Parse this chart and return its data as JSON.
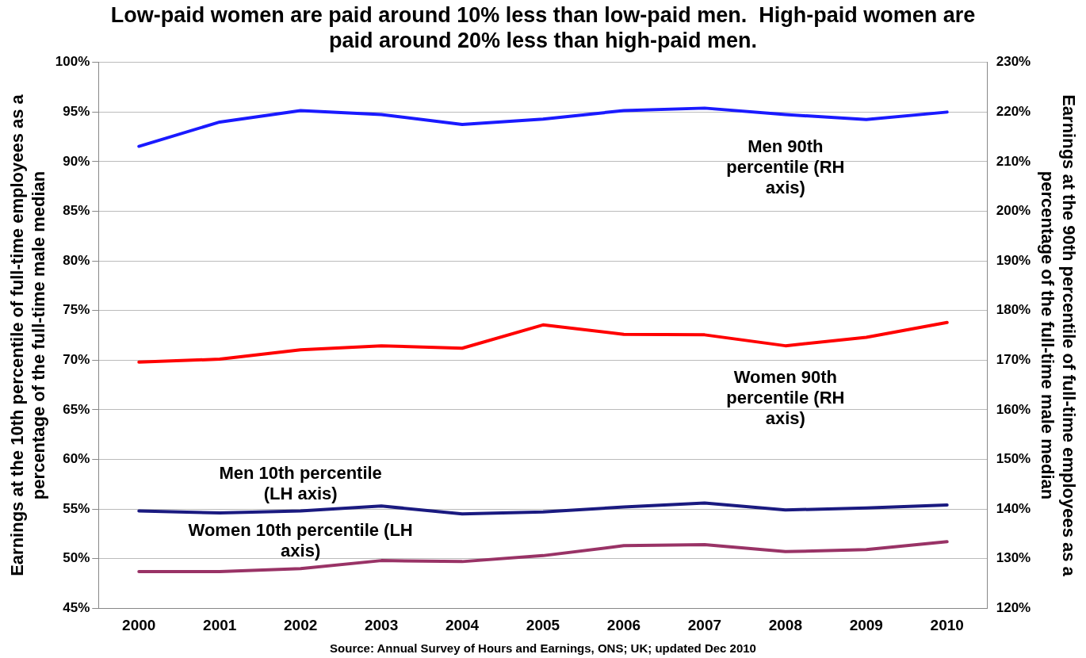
{
  "chart_data": {
    "type": "line",
    "title": "Low-paid women are paid around 10% less than low-paid men.  High-paid women are paid around 20% less than high-paid men.",
    "ylabel": "Earnings at the 10th percentile of full-time employees as a percentage of the full-time male median",
    "y2label": "Earnings at the 90th percentile of full-time employees as a percentage of the full-time male median",
    "annotations": [
      "Source: Annual Survey of Hours and Earnings, ONS; UK; updated Dec 2010"
    ],
    "categories": [
      "2000",
      "2001",
      "2002",
      "2003",
      "2004",
      "2005",
      "2006",
      "2007",
      "2008",
      "2009",
      "2010"
    ],
    "series": [
      {
        "name": "Men 90th percentile (RH axis)",
        "color": "#1a1aff",
        "axis": "y2",
        "values": [
          213.1,
          218.0,
          220.3,
          219.5,
          217.5,
          218.6,
          220.3,
          220.8,
          219.5,
          218.5,
          220.0
        ]
      },
      {
        "name": "Women 90th percentile (RH axis)",
        "color": "#ff0000",
        "axis": "y2",
        "values": [
          169.6,
          170.2,
          172.1,
          172.9,
          172.4,
          177.1,
          175.2,
          175.1,
          172.9,
          174.6,
          177.6
        ]
      },
      {
        "name": "Men 10th percentile (LH axis)",
        "color": "#1a1a80",
        "values": [
          54.8,
          54.6,
          54.8,
          55.3,
          54.5,
          54.7,
          55.2,
          55.6,
          54.9,
          55.1,
          55.4
        ]
      },
      {
        "name": "Women 10th percentile (LH axis)",
        "color": "#993366",
        "values": [
          48.7,
          48.7,
          49.0,
          49.8,
          49.7,
          50.3,
          51.3,
          51.4,
          50.7,
          50.9,
          51.7
        ]
      }
    ],
    "ylim": [
      45,
      100
    ],
    "yticks": [
      {
        "value": 45,
        "label": "45%"
      },
      {
        "value": 50,
        "label": "50%"
      },
      {
        "value": 55,
        "label": "55%"
      },
      {
        "value": 60,
        "label": "60%"
      },
      {
        "value": 65,
        "label": "65%"
      },
      {
        "value": 70,
        "label": "70%"
      },
      {
        "value": 75,
        "label": "75%"
      },
      {
        "value": 80,
        "label": "80%"
      },
      {
        "value": 85,
        "label": "85%"
      },
      {
        "value": 90,
        "label": "90%"
      },
      {
        "value": 95,
        "label": "95%"
      },
      {
        "value": 100,
        "label": "100%"
      }
    ],
    "y2lim": [
      120,
      230
    ],
    "y2ticks": [
      {
        "value": 120,
        "label": "120%"
      },
      {
        "value": 130,
        "label": "130%"
      },
      {
        "value": 140,
        "label": "140%"
      },
      {
        "value": 150,
        "label": "150%"
      },
      {
        "value": 160,
        "label": "160%"
      },
      {
        "value": 170,
        "label": "170%"
      },
      {
        "value": 180,
        "label": "180%"
      },
      {
        "value": 190,
        "label": "190%"
      },
      {
        "value": 200,
        "label": "200%"
      },
      {
        "value": 210,
        "label": "210%"
      },
      {
        "value": 220,
        "label": "220%"
      },
      {
        "value": 230,
        "label": "230%"
      }
    ],
    "grid": "y",
    "legend": false,
    "marker": "none",
    "line_style": "solid"
  }
}
